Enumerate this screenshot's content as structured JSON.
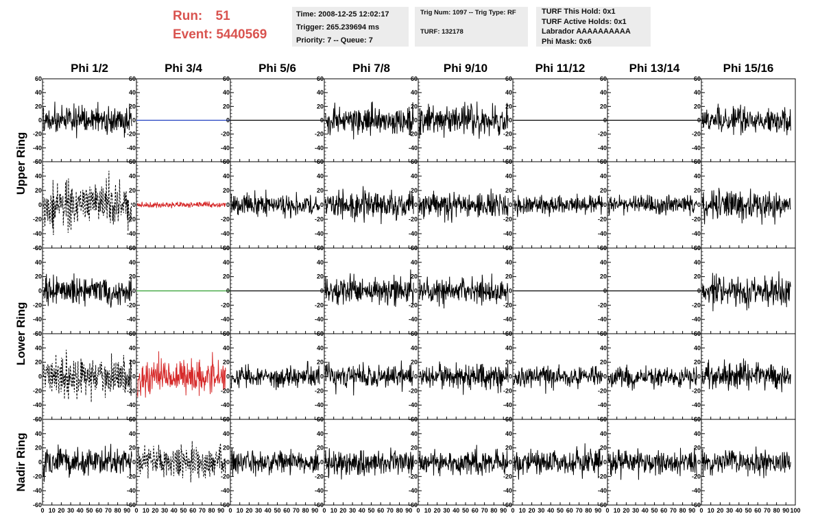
{
  "header": {
    "run_label": "Run:",
    "run_value": "51",
    "event_label": "Event:",
    "event_value": "5440569",
    "highlight_color": "#d9534f"
  },
  "info_time": {
    "time": "Time: 2008-12-25 12:02:17",
    "trigger": "Trigger: 265.239694 ms",
    "priority": "Priority: 7 -- Queue: 7"
  },
  "info_trig": {
    "trig": "Trig Num: 1097 -- Trig Type: RF",
    "turf": "TURF: 132178"
  },
  "info_turf": {
    "this_hold": "TURF This Hold: 0x1",
    "active_holds": "TURF Active Holds: 0x1",
    "labrador": "Labrador AAAAAAAAAA",
    "phi_mask": "Phi Mask: 0x6"
  },
  "chart_data": {
    "type": "line",
    "columns": [
      "Phi 1/2",
      "Phi 3/4",
      "Phi 5/6",
      "Phi 7/8",
      "Phi 9/10",
      "Phi 11/12",
      "Phi 13/14",
      "Phi 15/16"
    ],
    "ring_labels": [
      "Upper Ring",
      "Lower Ring",
      "Nadir Ring"
    ],
    "ring_rows": [
      [
        0,
        1
      ],
      [
        2,
        3
      ],
      [
        4
      ]
    ],
    "xlim": [
      0,
      100
    ],
    "ylim": [
      -60,
      60
    ],
    "x_ticks": [
      "0",
      "10",
      "20",
      "30",
      "40",
      "50",
      "60",
      "70",
      "80",
      "90",
      "100"
    ],
    "y_ticks": [
      60,
      40,
      20,
      0,
      -20,
      -40,
      -60
    ],
    "trace_colors": {
      "normal": "#000000",
      "flat_blue": "#1f3fbf",
      "flat_green": "#2e9e2e",
      "red": "#d62a2a"
    },
    "panels": [
      [
        {
          "style": "noise",
          "amp": 14,
          "color": "normal"
        },
        {
          "style": "flat",
          "color": "flat_blue"
        },
        {
          "style": "flat",
          "color": "normal"
        },
        {
          "style": "noise",
          "amp": 14,
          "color": "normal"
        },
        {
          "style": "noise",
          "amp": 15,
          "color": "normal"
        },
        {
          "style": "flat",
          "color": "normal"
        },
        {
          "style": "flat",
          "color": "normal"
        },
        {
          "style": "noise",
          "amp": 13,
          "color": "normal"
        }
      ],
      [
        {
          "style": "dashed",
          "amp": 22,
          "color": "normal"
        },
        {
          "style": "noise",
          "amp": 3,
          "color": "red"
        },
        {
          "style": "noise",
          "amp": 11,
          "color": "normal"
        },
        {
          "style": "noise",
          "amp": 14,
          "color": "normal"
        },
        {
          "style": "noise",
          "amp": 13,
          "color": "normal"
        },
        {
          "style": "noise",
          "amp": 10,
          "color": "normal"
        },
        {
          "style": "noise",
          "amp": 9,
          "color": "normal"
        },
        {
          "style": "noise",
          "amp": 14,
          "color": "normal"
        }
      ],
      [
        {
          "style": "noise",
          "amp": 14,
          "color": "normal"
        },
        {
          "style": "flat",
          "color": "flat_green"
        },
        {
          "style": "flat",
          "color": "normal"
        },
        {
          "style": "noise",
          "amp": 13,
          "color": "normal"
        },
        {
          "style": "noise",
          "amp": 13,
          "color": "normal"
        },
        {
          "style": "flat",
          "color": "normal"
        },
        {
          "style": "flat",
          "color": "normal"
        },
        {
          "style": "noise",
          "amp": 13,
          "color": "normal"
        }
      ],
      [
        {
          "style": "dashed",
          "amp": 20,
          "color": "normal"
        },
        {
          "style": "noise",
          "amp": 18,
          "color": "red"
        },
        {
          "style": "noise",
          "amp": 11,
          "color": "normal"
        },
        {
          "style": "noise",
          "amp": 12,
          "color": "normal"
        },
        {
          "style": "noise",
          "amp": 12,
          "color": "normal"
        },
        {
          "style": "noise",
          "amp": 10,
          "color": "normal"
        },
        {
          "style": "noise",
          "amp": 11,
          "color": "normal"
        },
        {
          "style": "noise",
          "amp": 13,
          "color": "normal"
        }
      ],
      [
        {
          "style": "noise",
          "amp": 14,
          "color": "normal"
        },
        {
          "style": "dashed",
          "amp": 16,
          "color": "normal"
        },
        {
          "style": "noise",
          "amp": 12,
          "color": "normal"
        },
        {
          "style": "noise",
          "amp": 12,
          "color": "normal"
        },
        {
          "style": "noise",
          "amp": 12,
          "color": "normal"
        },
        {
          "style": "noise",
          "amp": 13,
          "color": "normal"
        },
        {
          "style": "noise",
          "amp": 12,
          "color": "normal"
        },
        {
          "style": "noise",
          "amp": 12,
          "color": "normal"
        }
      ]
    ]
  }
}
